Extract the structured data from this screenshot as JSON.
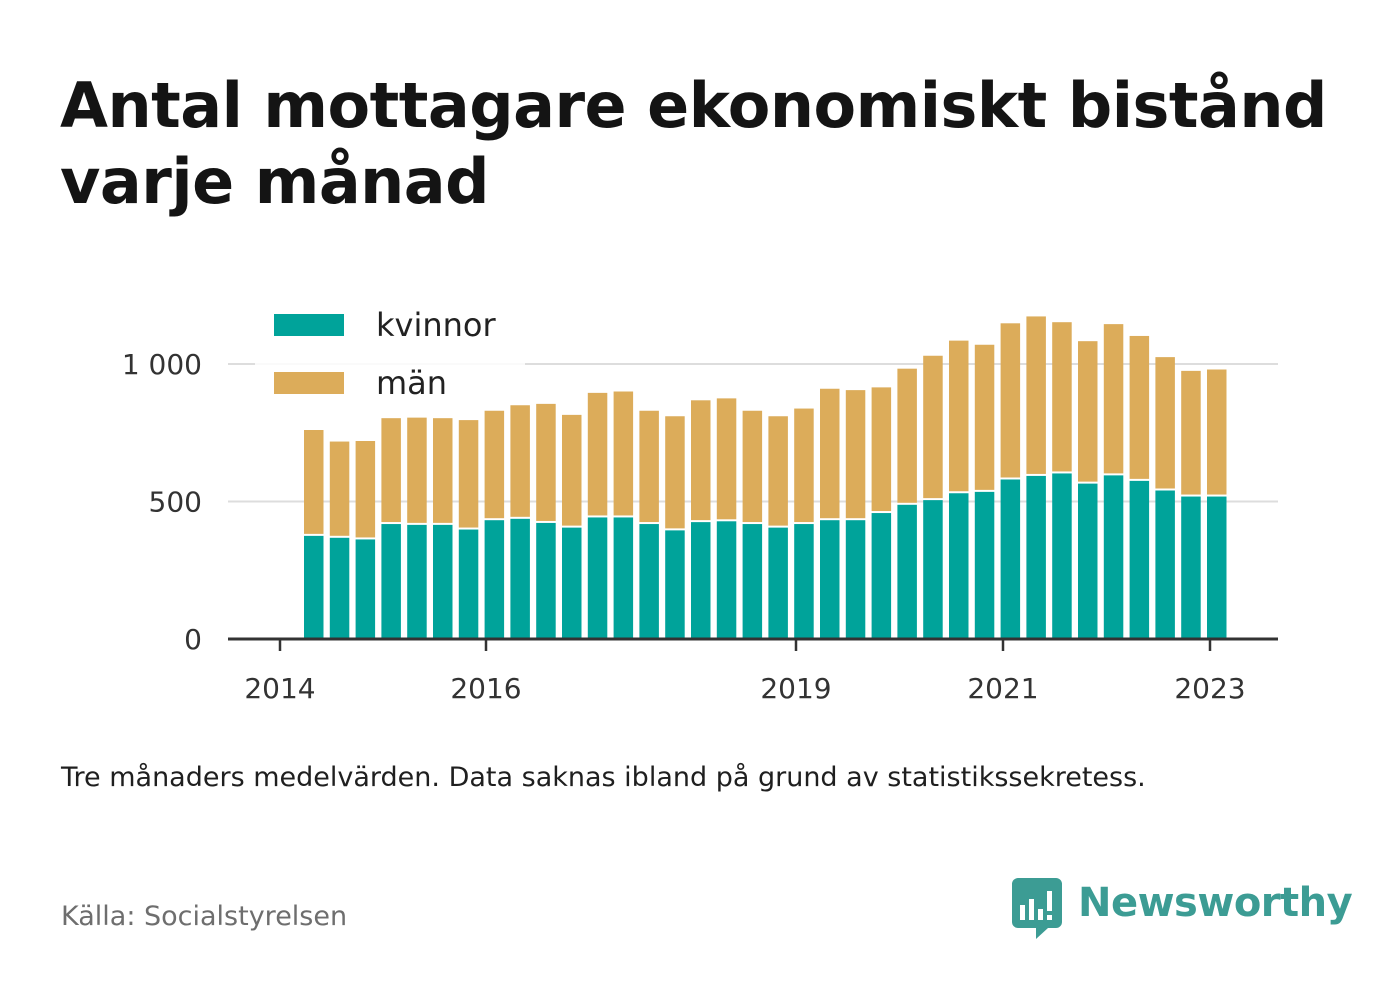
{
  "title": "Antal mottagare ekonomiskt bistånd varje månad",
  "note": "Tre månaders medelvärden. Data saknas ibland på grund av statistikssekretess.",
  "source": "Källa: Socialstyrelsen",
  "brand": "Newsworthy",
  "colors": {
    "kvinnor": "#00a39a",
    "man": "#dcac5a",
    "grid": "#dddddd",
    "axis": "#333333",
    "brand": "#3c9c94"
  },
  "chart_data": {
    "type": "bar",
    "stacked": true,
    "legend_position": "top-left",
    "grid": true,
    "ylim": [
      0,
      1200
    ],
    "y_ticks": [
      0,
      500,
      1000
    ],
    "y_tick_labels": [
      "0",
      "500",
      "1 000"
    ],
    "x_ticks": [
      "2014",
      "2016",
      "2019",
      "2021",
      "2023"
    ],
    "series": [
      {
        "name": "kvinnor",
        "values": [
          375,
          368,
          362,
          418,
          415,
          415,
          398,
          432,
          437,
          422,
          405,
          442,
          442,
          418,
          395,
          425,
          428,
          418,
          405,
          418,
          432,
          432,
          458,
          488,
          505,
          530,
          535,
          580,
          593,
          602,
          565,
          595,
          575,
          540,
          518,
          518
        ]
      },
      {
        "name": "män",
        "values": [
          385,
          350,
          358,
          385,
          390,
          388,
          398,
          398,
          413,
          433,
          410,
          453,
          458,
          412,
          415,
          443,
          447,
          412,
          405,
          420,
          478,
          473,
          457,
          495,
          525,
          555,
          535,
          568,
          580,
          550,
          518,
          550,
          527,
          485,
          457,
          462
        ]
      }
    ]
  }
}
